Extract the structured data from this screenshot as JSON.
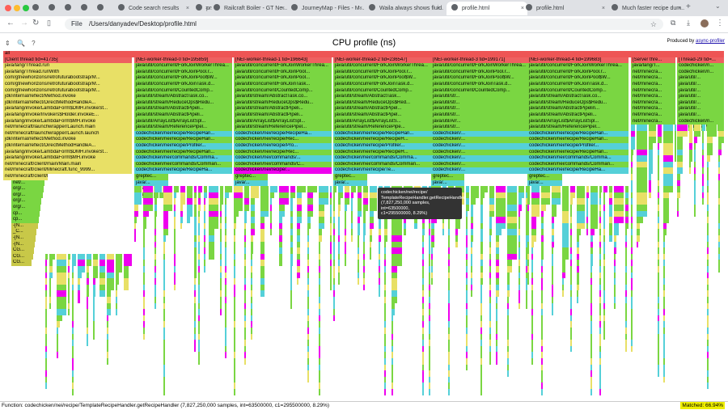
{
  "browser": {
    "tabs": [
      {
        "label": ""
      },
      {
        "label": ""
      },
      {
        "label": ""
      },
      {
        "label": ""
      },
      {
        "label": ""
      },
      {
        "label": "Code search results"
      },
      {
        "label": "prs"
      },
      {
        "label": "Railcraft Boiler - GT Ne..."
      },
      {
        "label": "JourneyMap - Files - M..."
      },
      {
        "label": "Waila always shows fluid..."
      },
      {
        "label": "profile.html"
      },
      {
        "label": "profile.html"
      },
      {
        "label": "Much faster recipe dum..."
      }
    ],
    "active_tab_index": 10,
    "url_chip": "File",
    "url": "/Users/danyadev/Desktop/profile.html"
  },
  "page": {
    "title": "CPU profile (ns)",
    "producer_prefix": "Produced by",
    "producer_link": "async-profiler",
    "controls": [
      "⇕",
      "🔍",
      "?"
    ]
  },
  "root_label": "all",
  "threads": [
    {
      "label": "[Client thread tid=41735]",
      "stack": [
        "java/lang/Thread.run",
        "java/lang/Thread.runWith",
        "com/gtnewhorizons/retrofuturabootstrap/M...",
        "com/gtnewhorizons/retrofuturabootstrap/M...",
        "com/gtnewhorizons/retrofuturabootstrap/M...",
        "jdk/internal/reflect/Method.invoke",
        "jdk/internal/reflect/DirectMethodHandleA...",
        "java/lang/invoke/LambdaForm$DMH.invokeSt...",
        "java/lang/invoke/Invokers$Holder.invokeE...",
        "java/lang/invoke/LambdaForm$MH.invoke",
        "net/minecraft/launchwrapper/Launch.main",
        "net/minecraft/launchwrapper/Launch.launch",
        "jdk/internal/reflect/Method.invoke",
        "jdk/internal/reflect/DirectMethodHandleA...",
        "java/lang/invoke/LambdaForm$DMH.invokeSt...",
        "java/lang/invoke/LambdaForm$MH.invoke",
        "net/minecraft/client/main/Main.main",
        "net/minecraft/client/Minecraft.func_9999...",
        "net/minecraft/client/Minecraft.func_7144...",
        "net/...",
        "org/...",
        "org/...",
        "org/...",
        "org/...",
        "cp...",
        "cp...",
        "-[N...",
        "_C...",
        "-[N...",
        "-[N...",
        "CG...",
        "CG...",
        "CG..."
      ]
    },
    {
      "label": "[NEI-worker-thread-0 tid=195859]",
      "stack": [
        "java/util/concurrent/ForkJoinWorkerThrea...",
        "java/util/concurrent/ForkJoinPool.r...",
        "java/util/concurrent/ForkJoinPool$W...",
        "java/util/concurrent/ForkJoinTask.d...",
        "java/util/concurrent/CountedComp...",
        "java/util/stream/AbstractTask.co...",
        "java/util/stream/ReduceOps$Redu...",
        "java/util/stream/AbstractPipeli...",
        "java/util/stream/AbstractPipeli...",
        "java/util/ArrayList$ArrayListSpl...",
        "java/util/stream/ReferencePipel...",
        "codechicken/nei/recipe/RecipeHan...",
        "codechicken/nei/recipe/RecipeHan...",
        "codechicken/nei/recipe/Profiler...",
        "codechicken/nei/recipe/RecipeHan...",
        "codechicken/nei/commands/Comma...",
        "codechicken/nei/commands/Comman...",
        "codechicken/nei/recipe/RecipeHa...",
        "greptec...",
        "java/...",
        "java/...",
        "java/..."
      ]
    },
    {
      "label": "[NEI-worker-thread-1 tid=196643]",
      "stack": [
        "java/util/concurrent/ForkJoinWorkerThrea...",
        "java/util/concurrent/ForkJoinPool...",
        "java/util/concurrent/ForkJoinPool...",
        "java/util/concurrent/ForkJoinTask...",
        "java/util/concurrent/CountedComp...",
        "java/util/stream/AbstractTask.co...",
        "java/util/stream/ReduceOps$Redu...",
        "java/util/stream/AbstractPipeli...",
        "java/util/stream/AbstractPipeli...",
        "java/util/ArrayList$ArrayListSpl...",
        "java/util/stream/ReferencePipel...",
        "codechicken/nei/recipe/RecipeHa...",
        "codechicken/nei/recipe/Rec...",
        "codechicken/nei/recipe/Pro...",
        "codechicken/nei/recipe/Rec...",
        "codechicken/nei/commands/...",
        "codechicken/nei/commands/C...",
        "codechicken/nei/recipe/...",
        "greptec...",
        "java/..."
      ]
    },
    {
      "label": "[NEI-worker-thread-2 tid=236547]",
      "stack": [
        "java/util/concurrent/ForkJoinWorkerThrea...",
        "java/util/concurrent/ForkJoinPool.r...",
        "java/util/concurrent/ForkJoinPool$W...",
        "java/util/concurrent/ForkJoinTask.d...",
        "java/util/concurrent/CountedComp...",
        "java/util/stream/AbstractTask...",
        "java/util/stream/ReduceOps$Red...",
        "java/util/stream/AbstractPipel...",
        "java/util/stream/AbstractPipel...",
        "java/util/ArrayList$ArrayListS...",
        "java/util/stream/ReferencePipe...",
        "codechicken/nei/recipe/RecipeHan...",
        "codechicken/nei/recipe/RecipeH...",
        "codechicken/nei/recipe/Profiler...",
        "codechicken/nei/recipe/RecipeH...",
        "codechicken/nei/commands/Comma...",
        "codechicken/nei/commands/Comman...",
        "codechicken/nei/recipe/Te...",
        "greptec...",
        "java/..."
      ]
    },
    {
      "label": "[NEI-worker-thread-3 tid=199171]",
      "stack": [
        "java/util/concurrent/ForkJoinWorkerThrea...",
        "java/util/concurrent/ForkJoinPool.r...",
        "java/util/concurrent/ForkJoinPool$W...",
        "java/util/concurrent/ForkJoinTask.d...",
        "java/util/concurrent/CountedComp...",
        "java/util/str...",
        "java/util/str...",
        "java/util/str...",
        "java/util/str...",
        "java/util/Arr...",
        "java/util/str...",
        "codechicken/...",
        "codechicken/...",
        "codechicken/...",
        "codechicken/...",
        "codechicken/...",
        "codechicken/...",
        "codechicken/...",
        "greptec...",
        "java/..."
      ]
    },
    {
      "label": "[NEI-worker-thread-4 tid=199683]",
      "stack": [
        "java/util/concurrent/ForkJoinWorkerThrea...",
        "java/util/concurrent/ForkJoinPool.r...",
        "java/util/concurrent/ForkJoinPool$W...",
        "java/util/concurrent/ForkJoinTask.d...",
        "java/util/concurrent/CountedComp...",
        "java/util/stream/AbstractTask.co...",
        "java/util/stream/ReduceOps$Redu...",
        "java/util/stream/AbstractPipelin...",
        "java/util/stream/AbstractPipeli...",
        "java/util/ArrayList$ArrayListSpl...",
        "java/util/stream/ReferencePipel...",
        "codechicken/nei/recipe/RecipeHan...",
        "codechicken/nei/recipe/RecipeHan...",
        "codechicken/nei/recipe/Profiler...",
        "codechicken/nei/recipe/RecipeHan...",
        "codechicken/nei/commands/Comma...",
        "codechicken/nei/commands/Comman...",
        "codechicken/nei/recipe/RecipeHa...",
        "greptec...",
        "java/..."
      ]
    },
    {
      "label": "[Server thre...",
      "stack": [
        "java/lang/T...",
        "net/minecra...",
        "net/minecra...",
        "net/minecra...",
        "net/minecra...",
        "net/minecra...",
        "net/minecra...",
        "net/minecra...",
        "net/minecra...",
        "net/minecra..."
      ]
    },
    {
      "label": "[Thread-29 tid=...",
      "stack": [
        "codechicken/n...",
        "codechicken/n...",
        "java/util/...",
        "java/util/...",
        "java/util/...",
        "java/util/...",
        "java/util/...",
        "java/util/...",
        "java/util/...",
        "codechicken/n...",
        "codechicken/n..."
      ]
    }
  ],
  "tooltip": {
    "lines": [
      "codechicken/nei/recipe/",
      "TemplateRecipeHandler.getRecipeHandler",
      "(7,827,250,000 samples, int=63500000,",
      "c1=295500000, 8.29%)"
    ]
  },
  "status": {
    "function": "Function: codechicken/nei/recipe/TemplateRecipeHandler.getRecipeHandler (7,827,250,000 samples, int=63500000, c1=295500000, 8.29%)",
    "matched": "Matched: 66.94%"
  },
  "colors": {
    "root": "#ee5555",
    "thread": "#ee6060",
    "java": "#7ad642",
    "jit": "#55d0d8",
    "inlined": "#e8e066",
    "native": "#dd44cc",
    "match": "#ee00ee",
    "cpp": "#c8c848"
  }
}
